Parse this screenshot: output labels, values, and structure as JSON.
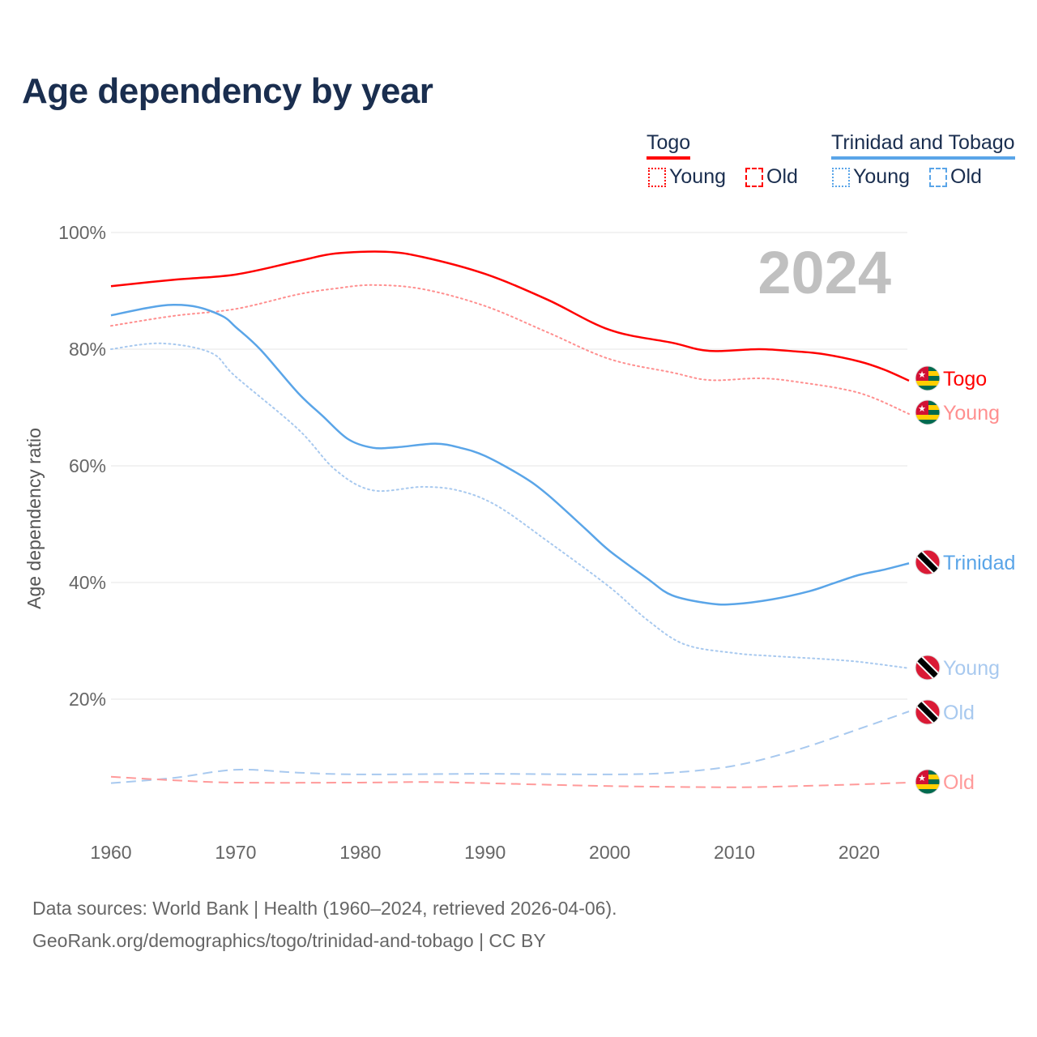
{
  "title": "Age dependency by year",
  "legend": {
    "groups": [
      {
        "name": "Togo",
        "color": "#ff0000",
        "items": [
          {
            "label": "Young",
            "style": "dotted"
          },
          {
            "label": "Old",
            "style": "dashed"
          }
        ]
      },
      {
        "name": "Trinidad and Tobago",
        "color": "#5aa5e8",
        "items": [
          {
            "label": "Young",
            "style": "dotted"
          },
          {
            "label": "Old",
            "style": "dashed"
          }
        ]
      }
    ]
  },
  "year_watermark": "2024",
  "sources": {
    "line1": "Data sources: World Bank | Health (1960–2024, retrieved 2026-04-06).",
    "line2": "GeoRank.org/demographics/togo/trinidad-and-tobago | CC BY"
  },
  "chart_data": {
    "type": "line",
    "title": "Age dependency by year",
    "xlabel": "",
    "ylabel": "Age dependency ratio",
    "xlim": [
      1960,
      2024
    ],
    "ylim": [
      0,
      100
    ],
    "xticks": [
      1960,
      1970,
      1980,
      1990,
      2000,
      2010,
      2020
    ],
    "xtick_labels": [
      "1960",
      "1970",
      "1980",
      "1990",
      "2000",
      "2010",
      "2020"
    ],
    "yticks": [
      20,
      40,
      60,
      80,
      100
    ],
    "ytick_labels": [
      "20%",
      "40%",
      "60%",
      "80%",
      "100%"
    ],
    "grid": true,
    "legend_position": "top-right",
    "series": [
      {
        "name": "Togo",
        "end_label": "Togo",
        "country": "togo",
        "color": "#ff0000",
        "style": "solid",
        "x": [
          1960,
          1965,
          1970,
          1975,
          1978,
          1982,
          1985,
          1990,
          1995,
          2000,
          2005,
          2008,
          2012,
          2015,
          2017,
          2020,
          2022,
          2024
        ],
        "y": [
          90.8,
          91.9,
          92.8,
          95.1,
          96.4,
          96.7,
          95.8,
          92.9,
          88.5,
          83.3,
          81.1,
          79.7,
          80.0,
          79.6,
          79.2,
          77.9,
          76.5,
          74.6
        ]
      },
      {
        "name": "Togo Young",
        "end_label": "Young",
        "country": "togo",
        "color": "#ff8f8f",
        "style": "dotted",
        "x": [
          1960,
          1965,
          1970,
          1975,
          1978,
          1981,
          1985,
          1990,
          1995,
          2000,
          2005,
          2008,
          2012,
          2015,
          2020,
          2024
        ],
        "y": [
          84.0,
          85.7,
          86.9,
          89.4,
          90.4,
          91.0,
          90.3,
          87.4,
          82.9,
          78.3,
          76.0,
          74.7,
          75.0,
          74.4,
          72.5,
          68.9
        ]
      },
      {
        "name": "Trinidad and Tobago",
        "end_label": "Trinidad",
        "country": "trinidad",
        "color": "#5aa5e8",
        "style": "solid",
        "x": [
          1960,
          1963,
          1965,
          1967,
          1969,
          1970,
          1972,
          1975,
          1977,
          1979,
          1981,
          1983,
          1986,
          1988,
          1990,
          1993,
          1995,
          1998,
          2000,
          2003,
          2005,
          2008,
          2010,
          2013,
          2016,
          2018,
          2020,
          2022,
          2024
        ],
        "y": [
          85.8,
          87.1,
          87.6,
          87.2,
          85.6,
          83.8,
          79.9,
          72.5,
          68.5,
          64.6,
          63.1,
          63.2,
          63.8,
          63.1,
          61.7,
          58.2,
          55.1,
          49.3,
          45.4,
          40.7,
          37.8,
          36.4,
          36.3,
          37.1,
          38.5,
          39.9,
          41.3,
          42.2,
          43.3
        ]
      },
      {
        "name": "Trinidad and Tobago Young",
        "end_label": "Young",
        "country": "trinidad",
        "color": "#a8c9ef",
        "style": "dotted",
        "x": [
          1960,
          1964,
          1968,
          1970,
          1975,
          1978,
          1981,
          1985,
          1988,
          1991,
          1995,
          2000,
          2003,
          2006,
          2010,
          2013,
          2017,
          2020,
          2024
        ],
        "y": [
          80.0,
          81.0,
          79.4,
          75.3,
          66.3,
          59.3,
          55.8,
          56.4,
          55.7,
          53.1,
          47.1,
          39.2,
          33.6,
          29.4,
          27.9,
          27.4,
          26.9,
          26.4,
          25.3
        ]
      },
      {
        "name": "Trinidad and Tobago Old",
        "end_label": "Old",
        "country": "trinidad",
        "color": "#a8c9ef",
        "style": "dashed",
        "x": [
          1960,
          1965,
          1970,
          1975,
          1980,
          1990,
          2000,
          2005,
          2010,
          2015,
          2020,
          2024
        ],
        "y": [
          5.6,
          6.5,
          7.9,
          7.4,
          7.1,
          7.2,
          7.1,
          7.4,
          8.6,
          11.3,
          14.9,
          17.9
        ]
      },
      {
        "name": "Togo Old",
        "end_label": "Old",
        "country": "togo",
        "color": "#ff9a9a",
        "style": "dashed",
        "x": [
          1960,
          1965,
          1970,
          1980,
          1985,
          1990,
          2000,
          2010,
          2015,
          2020,
          2024
        ],
        "y": [
          6.7,
          6.1,
          5.7,
          5.7,
          5.8,
          5.6,
          5.1,
          4.9,
          5.1,
          5.4,
          5.7
        ]
      }
    ]
  }
}
